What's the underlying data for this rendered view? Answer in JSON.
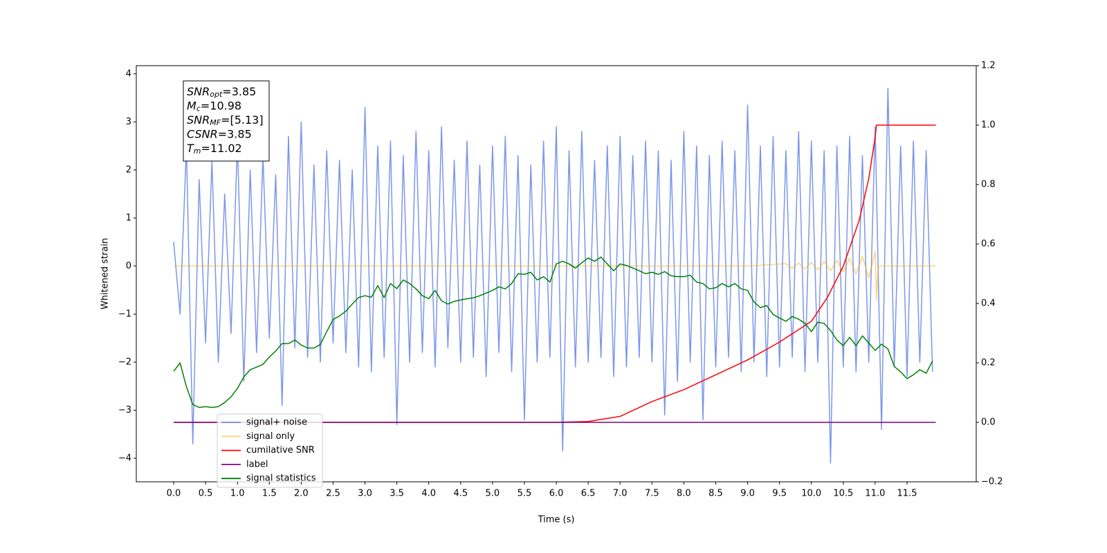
{
  "chart_data": {
    "type": "line",
    "xlabel": "Time (s)",
    "ylabel": "Whitened strain",
    "xlim": [
      -0.586,
      12.585
    ],
    "ylim": [
      -4.49,
      4.17
    ],
    "y2lim": [
      -0.2,
      1.2
    ],
    "xticks": [
      {
        "value": 0,
        "label": "0.0"
      },
      {
        "value": 0.5,
        "label": "0.5"
      },
      {
        "value": 1,
        "label": "1.0"
      },
      {
        "value": 1.5,
        "label": "1.5"
      },
      {
        "value": 2,
        "label": "2.0"
      },
      {
        "value": 2.5,
        "label": "2.5"
      },
      {
        "value": 3,
        "label": "3.0"
      },
      {
        "value": 3.5,
        "label": "3.5"
      },
      {
        "value": 4,
        "label": "4.0"
      },
      {
        "value": 4.5,
        "label": "4.5"
      },
      {
        "value": 5,
        "label": "5.0"
      },
      {
        "value": 5.5,
        "label": "5.5"
      },
      {
        "value": 6,
        "label": "6.0"
      },
      {
        "value": 6.5,
        "label": "6.5"
      },
      {
        "value": 7,
        "label": "7.0"
      },
      {
        "value": 7.5,
        "label": "7.5"
      },
      {
        "value": 8,
        "label": "8.0"
      },
      {
        "value": 8.5,
        "label": "8.5"
      },
      {
        "value": 9,
        "label": "9.0"
      },
      {
        "value": 9.5,
        "label": "9.5"
      },
      {
        "value": 10,
        "label": "10.0"
      },
      {
        "value": 10.5,
        "label": "10.5"
      },
      {
        "value": 11,
        "label": "11.0"
      },
      {
        "value": 11.5,
        "label": "11.5"
      }
    ],
    "yticks": [
      {
        "value": -4,
        "label": "−4"
      },
      {
        "value": -3,
        "label": "−3"
      },
      {
        "value": -2,
        "label": "−2"
      },
      {
        "value": -1,
        "label": "−1"
      },
      0,
      1,
      2,
      3,
      4
    ],
    "y2ticks": [
      {
        "value": -0.2,
        "label": "−0.2"
      },
      {
        "value": 0,
        "label": "0.0"
      },
      {
        "value": 0.2,
        "label": "0.2"
      },
      {
        "value": 0.4,
        "label": "0.4"
      },
      {
        "value": 0.6,
        "label": "0.6"
      },
      {
        "value": 0.8,
        "label": "0.8"
      },
      {
        "value": 1,
        "label": "1.0"
      },
      {
        "value": 1.2,
        "label": "1.2"
      }
    ],
    "legend": "lower left",
    "annotation": [
      {
        "main": "SNR",
        "sub": "opt",
        "rest": "=3.85"
      },
      {
        "main": "M",
        "sub": "c",
        "rest": "=10.98"
      },
      {
        "main": "SNR",
        "sub": "MF",
        "rest": "=[5.13]"
      },
      {
        "main": "CSNR",
        "sub": "",
        "rest": "=3.85"
      },
      {
        "main": "T",
        "sub": "m",
        "rest": "=11.02"
      }
    ],
    "series": [
      {
        "name": "signal+ noise",
        "color": "#4169e1",
        "opacity": 0.7,
        "x": [
          0,
          0.1,
          0.2,
          0.3,
          0.4,
          0.5,
          0.6,
          0.7,
          0.8,
          0.9,
          1,
          1.1,
          1.2,
          1.3,
          1.4,
          1.5,
          1.6,
          1.7,
          1.8,
          1.9,
          2,
          2.1,
          2.2,
          2.3,
          2.4,
          2.5,
          2.6,
          2.7,
          2.8,
          2.9,
          3,
          3.1,
          3.2,
          3.3,
          3.4,
          3.5,
          3.6,
          3.7,
          3.8,
          3.9,
          4,
          4.1,
          4.2,
          4.3,
          4.4,
          4.5,
          4.6,
          4.7,
          4.8,
          4.9,
          5,
          5.1,
          5.2,
          5.3,
          5.4,
          5.5,
          5.6,
          5.7,
          5.8,
          5.9,
          6,
          6.1,
          6.2,
          6.3,
          6.4,
          6.5,
          6.6,
          6.7,
          6.8,
          6.9,
          7,
          7.1,
          7.2,
          7.3,
          7.4,
          7.5,
          7.6,
          7.7,
          7.8,
          7.9,
          8,
          8.1,
          8.2,
          8.3,
          8.4,
          8.5,
          8.6,
          8.7,
          8.8,
          8.9,
          9,
          9.1,
          9.2,
          9.3,
          9.4,
          9.5,
          9.6,
          9.7,
          9.8,
          9.9,
          10,
          10.1,
          10.2,
          10.3,
          10.4,
          10.5,
          10.6,
          10.7,
          10.8,
          10.9,
          11,
          11.1,
          11.2,
          11.3,
          11.4,
          11.5,
          11.6,
          11.7,
          11.8,
          11.9
        ],
        "values": [
          0.5,
          -1.0,
          2.5,
          -3.7,
          1.8,
          -1.6,
          2.2,
          -2.0,
          1.5,
          -1.4,
          2.6,
          -2.4,
          2.0,
          -1.8,
          2.3,
          -1.5,
          1.9,
          -2.9,
          2.7,
          -1.7,
          3.0,
          -1.9,
          2.1,
          -2.0,
          2.4,
          -1.6,
          2.2,
          -1.8,
          2.0,
          -2.1,
          3.3,
          -2.2,
          2.5,
          -1.9,
          2.6,
          -3.3,
          2.3,
          -2.0,
          2.8,
          -1.8,
          2.4,
          -2.1,
          2.9,
          -1.7,
          2.2,
          -2.0,
          2.6,
          -1.9,
          2.1,
          -2.3,
          2.5,
          -1.8,
          2.7,
          -2.2,
          2.3,
          -3.2,
          2.1,
          -2.0,
          2.6,
          -1.9,
          2.9,
          -3.85,
          2.4,
          -2.1,
          2.8,
          -2.0,
          2.2,
          -1.9,
          2.5,
          -2.3,
          2.7,
          -2.1,
          2.3,
          -1.9,
          2.6,
          -2.0,
          2.4,
          -3.1,
          2.2,
          -2.4,
          2.8,
          -2.0,
          2.5,
          -3.2,
          2.3,
          -2.1,
          2.6,
          -1.9,
          2.4,
          -2.2,
          3.35,
          -2.0,
          2.5,
          -2.3,
          2.7,
          -2.1,
          2.4,
          -1.9,
          2.8,
          -2.2,
          2.6,
          -2.0,
          2.4,
          -4.1,
          2.5,
          -2.1,
          2.7,
          -2.2,
          2.3,
          -2.0,
          2.9,
          -3.4,
          3.7,
          -2.1,
          2.5,
          -2.3,
          2.6,
          -2.0,
          2.4,
          -2.2
        ]
      },
      {
        "name": "signal only",
        "color": "#ffa500",
        "opacity": 0.5,
        "x": [
          0,
          9.0,
          9.6,
          9.7,
          9.8,
          9.9,
          10.0,
          10.1,
          10.2,
          10.3,
          10.4,
          10.5,
          10.6,
          10.7,
          10.8,
          10.9,
          11.0,
          11.02,
          11.05,
          11.95
        ],
        "values": [
          0,
          0,
          0.05,
          -0.05,
          0.06,
          -0.06,
          0.08,
          -0.08,
          0.1,
          -0.1,
          0.12,
          -0.12,
          0.16,
          -0.16,
          0.2,
          -0.25,
          0.3,
          -0.7,
          0,
          0
        ]
      },
      {
        "name": "cumilative SNR",
        "color": "#ff0000",
        "opacity": 1,
        "axis": "y2",
        "x": [
          0,
          6.0,
          6.5,
          7.0,
          7.5,
          8.0,
          8.5,
          9.0,
          9.5,
          10.0,
          10.25,
          10.5,
          10.75,
          10.9,
          11.0,
          11.02,
          11.95
        ],
        "values": [
          0,
          0,
          0.003,
          0.02,
          0.07,
          0.11,
          0.16,
          0.21,
          0.27,
          0.34,
          0.42,
          0.525,
          0.68,
          0.82,
          0.96,
          1.0,
          1.0
        ]
      },
      {
        "name": "label",
        "color": "#800080",
        "opacity": 1,
        "axis": "y2",
        "x": [
          0,
          11.95
        ],
        "values": [
          0,
          0
        ]
      },
      {
        "name": "signal statistics",
        "color": "#008000",
        "opacity": 1,
        "axis": "y2",
        "x": [
          0,
          0.1,
          0.2,
          0.3,
          0.4,
          0.5,
          0.6,
          0.7,
          0.8,
          0.9,
          1,
          1.1,
          1.2,
          1.3,
          1.4,
          1.5,
          1.6,
          1.7,
          1.8,
          1.9,
          2,
          2.1,
          2.2,
          2.3,
          2.4,
          2.5,
          2.6,
          2.7,
          2.8,
          2.9,
          3,
          3.1,
          3.2,
          3.3,
          3.4,
          3.5,
          3.6,
          3.7,
          3.8,
          3.9,
          4,
          4.1,
          4.2,
          4.3,
          4.4,
          4.5,
          4.6,
          4.7,
          4.8,
          4.9,
          5,
          5.1,
          5.2,
          5.3,
          5.4,
          5.5,
          5.6,
          5.7,
          5.8,
          5.9,
          6,
          6.1,
          6.2,
          6.3,
          6.4,
          6.5,
          6.6,
          6.7,
          6.8,
          6.9,
          7,
          7.1,
          7.2,
          7.3,
          7.4,
          7.5,
          7.6,
          7.7,
          7.8,
          7.9,
          8,
          8.1,
          8.2,
          8.3,
          8.4,
          8.5,
          8.6,
          8.7,
          8.8,
          8.9,
          9,
          9.1,
          9.2,
          9.3,
          9.4,
          9.5,
          9.6,
          9.7,
          9.8,
          9.9,
          10,
          10.1,
          10.2,
          10.3,
          10.4,
          10.5,
          10.6,
          10.7,
          10.8,
          10.9,
          11,
          11.1,
          11.2,
          11.3,
          11.4,
          11.5,
          11.6,
          11.7,
          11.8,
          11.9
        ],
        "values": [
          0.172,
          0.2,
          0.12,
          0.06,
          0.05,
          0.053,
          0.05,
          0.053,
          0.067,
          0.086,
          0.114,
          0.153,
          0.177,
          0.186,
          0.195,
          0.22,
          0.24,
          0.265,
          0.265,
          0.277,
          0.26,
          0.25,
          0.25,
          0.262,
          0.305,
          0.346,
          0.358,
          0.374,
          0.398,
          0.42,
          0.426,
          0.421,
          0.46,
          0.42,
          0.467,
          0.45,
          0.479,
          0.467,
          0.449,
          0.426,
          0.416,
          0.444,
          0.409,
          0.398,
          0.407,
          0.412,
          0.416,
          0.419,
          0.426,
          0.435,
          0.444,
          0.456,
          0.449,
          0.467,
          0.5,
          0.498,
          0.505,
          0.479,
          0.49,
          0.472,
          0.533,
          0.542,
          0.533,
          0.519,
          0.537,
          0.553,
          0.542,
          0.556,
          0.533,
          0.51,
          0.533,
          0.528,
          0.519,
          0.51,
          0.5,
          0.505,
          0.498,
          0.507,
          0.493,
          0.49,
          0.49,
          0.495,
          0.472,
          0.467,
          0.449,
          0.453,
          0.467,
          0.456,
          0.467,
          0.449,
          0.444,
          0.405,
          0.386,
          0.393,
          0.363,
          0.351,
          0.34,
          0.356,
          0.347,
          0.333,
          0.305,
          0.337,
          0.333,
          0.309,
          0.277,
          0.258,
          0.286,
          0.258,
          0.291,
          0.267,
          0.242,
          0.263,
          0.247,
          0.188,
          0.17,
          0.147,
          0.16,
          0.177,
          0.165,
          0.207
        ]
      }
    ]
  }
}
